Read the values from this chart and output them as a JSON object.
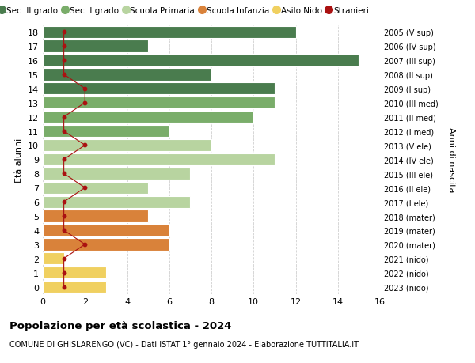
{
  "ages": [
    18,
    17,
    16,
    15,
    14,
    13,
    12,
    11,
    10,
    9,
    8,
    7,
    6,
    5,
    4,
    3,
    2,
    1,
    0
  ],
  "years": [
    "2005 (V sup)",
    "2006 (IV sup)",
    "2007 (III sup)",
    "2008 (II sup)",
    "2009 (I sup)",
    "2010 (III med)",
    "2011 (II med)",
    "2012 (I med)",
    "2013 (V ele)",
    "2014 (IV ele)",
    "2015 (III ele)",
    "2016 (II ele)",
    "2017 (I ele)",
    "2018 (mater)",
    "2019 (mater)",
    "2020 (mater)",
    "2021 (nido)",
    "2022 (nido)",
    "2023 (nido)"
  ],
  "bar_values": [
    12,
    5,
    15,
    8,
    11,
    11,
    10,
    6,
    8,
    11,
    7,
    5,
    7,
    5,
    6,
    6,
    1,
    3,
    3
  ],
  "bar_colors": [
    "#4a7c4e",
    "#4a7c4e",
    "#4a7c4e",
    "#4a7c4e",
    "#4a7c4e",
    "#7aad6a",
    "#7aad6a",
    "#7aad6a",
    "#b8d4a0",
    "#b8d4a0",
    "#b8d4a0",
    "#b8d4a0",
    "#b8d4a0",
    "#d9823a",
    "#d9823a",
    "#d9823a",
    "#f0d060",
    "#f0d060",
    "#f0d060"
  ],
  "stranieri_values": [
    1,
    1,
    1,
    1,
    2,
    2,
    1,
    1,
    2,
    1,
    1,
    2,
    1,
    1,
    1,
    2,
    1,
    1,
    1
  ],
  "legend_labels": [
    "Sec. II grado",
    "Sec. I grado",
    "Scuola Primaria",
    "Scuola Infanzia",
    "Asilo Nido",
    "Stranieri"
  ],
  "legend_colors": [
    "#4a7c4e",
    "#7aad6a",
    "#b8d4a0",
    "#d9823a",
    "#f0d060",
    "#aa1111"
  ],
  "ylabel_left": "Età alunni",
  "ylabel_right": "Anni di nascita",
  "title_bold": "Popolazione per età scolastica - 2024",
  "subtitle": "COMUNE DI GHISLARENGO (VC) - Dati ISTAT 1° gennaio 2024 - Elaborazione TUTTITALIA.IT",
  "xlim": [
    0,
    16
  ],
  "xticks": [
    0,
    2,
    4,
    6,
    8,
    10,
    12,
    14,
    16
  ],
  "ylim": [
    -0.5,
    18.5
  ],
  "background_color": "#ffffff",
  "grid_color": "#d0d0d0",
  "stranieri_color": "#aa1111",
  "bar_height": 0.85
}
